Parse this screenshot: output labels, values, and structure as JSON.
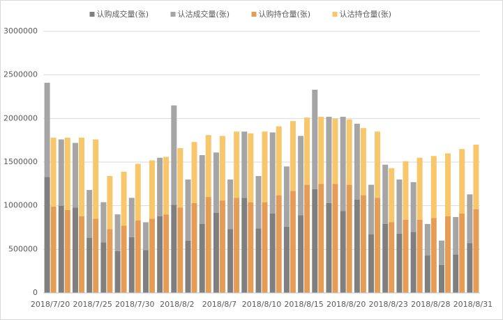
{
  "chart_data": {
    "type": "stacked_bar",
    "categories": [
      "2018/7/20",
      null,
      null,
      "2018/7/25",
      null,
      null,
      "2018/7/30",
      null,
      null,
      "2018/8/2",
      null,
      null,
      "2018/8/7",
      null,
      null,
      "2018/8/10",
      null,
      null,
      "2018/8/15",
      null,
      null,
      "2018/8/20",
      null,
      null,
      "2018/8/23",
      null,
      null,
      "2018/8/28",
      null,
      null,
      "2018/8/31"
    ],
    "series": [
      {
        "name": "认购成交量(张)",
        "color": "#7f7f7f",
        "stack": "volume",
        "values": [
          1330000,
          1000000,
          980000,
          630000,
          580000,
          480000,
          640000,
          490000,
          880000,
          1010000,
          600000,
          790000,
          920000,
          730000,
          1090000,
          740000,
          910000,
          760000,
          890000,
          1190000,
          1030000,
          940000,
          1070000,
          670000,
          790000,
          680000,
          700000,
          430000,
          320000,
          440000,
          570000
        ]
      },
      {
        "name": "认沽成交量(张)",
        "color": "#a5a5a5",
        "stack": "volume",
        "values": [
          1080000,
          760000,
          740000,
          550000,
          460000,
          420000,
          450000,
          320000,
          670000,
          1140000,
          700000,
          790000,
          690000,
          570000,
          760000,
          600000,
          930000,
          690000,
          910000,
          1140000,
          990000,
          1080000,
          870000,
          570000,
          680000,
          620000,
          570000,
          360000,
          280000,
          430000,
          560000
        ]
      },
      {
        "name": "认购持仓量(张)",
        "color": "#e59c55",
        "stack": "oi",
        "values": [
          990000,
          950000,
          880000,
          850000,
          730000,
          770000,
          830000,
          850000,
          900000,
          980000,
          1030000,
          1100000,
          1060000,
          1090000,
          1040000,
          1040000,
          1120000,
          1170000,
          1240000,
          1250000,
          1250000,
          1240000,
          1120000,
          1090000,
          810000,
          840000,
          840000,
          860000,
          880000,
          910000,
          960000
        ]
      },
      {
        "name": "认沽持仓量(张)",
        "color": "#f8c66b",
        "stack": "oi",
        "values": [
          790000,
          830000,
          900000,
          910000,
          610000,
          620000,
          650000,
          670000,
          660000,
          680000,
          700000,
          710000,
          740000,
          760000,
          790000,
          810000,
          790000,
          800000,
          770000,
          770000,
          750000,
          750000,
          770000,
          760000,
          620000,
          670000,
          710000,
          710000,
          720000,
          740000,
          740000
        ]
      }
    ],
    "ylim": [
      0,
      3000000
    ],
    "yticks": [
      0,
      500000,
      1000000,
      1500000,
      2000000,
      2500000,
      3000000
    ],
    "grid": true,
    "legend": "top"
  }
}
